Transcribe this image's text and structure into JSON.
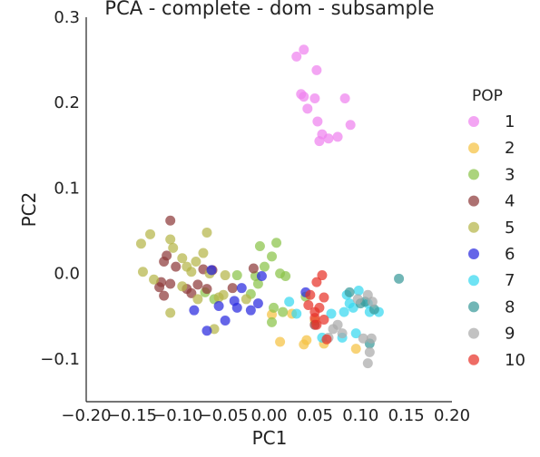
{
  "chart_data": {
    "type": "scatter",
    "title": "PCA - complete - dom - subsample",
    "xlabel": "PC1",
    "ylabel": "PC2",
    "xlim": [
      -0.2,
      0.2
    ],
    "ylim": [
      -0.15,
      0.3
    ],
    "xticks": [
      "−0.20",
      "−0.15",
      "−0.10",
      "−0.05",
      "0.00",
      "0.05",
      "0.10",
      "0.15",
      "0.20"
    ],
    "yticks": [
      "−0.1",
      "0.0",
      "0.1",
      "0.2",
      "0.3"
    ],
    "xtick_values": [
      -0.2,
      -0.15,
      -0.1,
      -0.05,
      0,
      0.05,
      0.1,
      0.15,
      0.2
    ],
    "ytick_values": [
      -0.1,
      0,
      0.1,
      0.2,
      0.3
    ],
    "grid": false,
    "legend_title": "POP",
    "legend_position": "right",
    "series": [
      {
        "name": "1",
        "color": "#ee82ee",
        "points": [
          [
            0.03,
            0.254
          ],
          [
            0.038,
            0.262
          ],
          [
            0.052,
            0.238
          ],
          [
            0.035,
            0.21
          ],
          [
            0.05,
            0.205
          ],
          [
            0.083,
            0.205
          ],
          [
            0.042,
            0.193
          ],
          [
            0.053,
            0.178
          ],
          [
            0.058,
            0.163
          ],
          [
            0.065,
            0.158
          ],
          [
            0.075,
            0.16
          ],
          [
            0.055,
            0.155
          ],
          [
            0.089,
            0.174
          ],
          [
            0.038,
            0.207
          ]
        ]
      },
      {
        "name": "2",
        "color": "#f5c242",
        "points": [
          [
            0.012,
            -0.08
          ],
          [
            0.025,
            -0.047
          ],
          [
            0.038,
            -0.083
          ],
          [
            0.041,
            -0.078
          ],
          [
            0.06,
            -0.082
          ],
          [
            0.05,
            -0.055
          ],
          [
            0.095,
            -0.088
          ],
          [
            0.003,
            -0.048
          ]
        ]
      },
      {
        "name": "3",
        "color": "#8bc34a",
        "points": [
          [
            -0.07,
            -0.022
          ],
          [
            -0.06,
            -0.03
          ],
          [
            -0.035,
            -0.002
          ],
          [
            -0.02,
            -0.024
          ],
          [
            -0.012,
            -0.012
          ],
          [
            -0.01,
            0.032
          ],
          [
            0.003,
            0.02
          ],
          [
            0.008,
            0.036
          ],
          [
            0.012,
            0.0
          ],
          [
            0.018,
            -0.003
          ],
          [
            0.015,
            -0.045
          ],
          [
            0.003,
            -0.057
          ],
          [
            0.005,
            -0.04
          ],
          [
            -0.005,
            0.008
          ],
          [
            0.04,
            -0.027
          ],
          [
            -0.015,
            -0.003
          ]
        ]
      },
      {
        "name": "4",
        "color": "#8e3a3a",
        "points": [
          [
            -0.108,
            0.062
          ],
          [
            -0.115,
            0.014
          ],
          [
            -0.112,
            0.021
          ],
          [
            -0.12,
            -0.016
          ],
          [
            -0.115,
            -0.026
          ],
          [
            -0.118,
            -0.01
          ],
          [
            -0.108,
            -0.012
          ],
          [
            -0.102,
            0.008
          ],
          [
            -0.09,
            -0.018
          ],
          [
            -0.085,
            -0.023
          ],
          [
            -0.078,
            -0.013
          ],
          [
            -0.072,
            0.005
          ],
          [
            -0.068,
            -0.018
          ],
          [
            -0.062,
            0.004
          ],
          [
            -0.04,
            -0.017
          ],
          [
            -0.017,
            0.006
          ],
          [
            0.05,
            -0.06
          ]
        ]
      },
      {
        "name": "5",
        "color": "#b5b54a",
        "points": [
          [
            -0.14,
            0.035
          ],
          [
            -0.13,
            0.046
          ],
          [
            -0.138,
            0.002
          ],
          [
            -0.126,
            -0.007
          ],
          [
            -0.108,
            0.04
          ],
          [
            -0.105,
            0.03
          ],
          [
            -0.095,
            0.018
          ],
          [
            -0.09,
            0.008
          ],
          [
            -0.085,
            0.002
          ],
          [
            -0.08,
            0.014
          ],
          [
            -0.072,
            0.024
          ],
          [
            -0.068,
            0.048
          ],
          [
            -0.065,
            0.0
          ],
          [
            -0.055,
            -0.028
          ],
          [
            -0.05,
            -0.025
          ],
          [
            -0.06,
            -0.065
          ],
          [
            -0.108,
            -0.046
          ],
          [
            -0.048,
            -0.002
          ],
          [
            -0.025,
            -0.03
          ],
          [
            -0.095,
            -0.015
          ],
          [
            -0.078,
            -0.03
          ]
        ]
      },
      {
        "name": "6",
        "color": "#2a2adf",
        "points": [
          [
            -0.082,
            -0.043
          ],
          [
            -0.068,
            -0.067
          ],
          [
            -0.063,
            0.004
          ],
          [
            -0.055,
            -0.038
          ],
          [
            -0.048,
            -0.055
          ],
          [
            -0.038,
            -0.032
          ],
          [
            -0.035,
            -0.04
          ],
          [
            -0.03,
            -0.017
          ],
          [
            -0.02,
            -0.043
          ],
          [
            -0.012,
            -0.035
          ],
          [
            -0.008,
            -0.003
          ],
          [
            0.04,
            -0.022
          ]
        ]
      },
      {
        "name": "7",
        "color": "#38d8f0",
        "points": [
          [
            0.022,
            -0.033
          ],
          [
            0.068,
            -0.047
          ],
          [
            0.082,
            -0.045
          ],
          [
            0.085,
            -0.025
          ],
          [
            0.088,
            -0.035
          ],
          [
            0.092,
            -0.04
          ],
          [
            0.098,
            -0.02
          ],
          [
            0.108,
            -0.035
          ],
          [
            0.11,
            -0.045
          ],
          [
            0.12,
            -0.045
          ],
          [
            0.08,
            -0.075
          ],
          [
            0.095,
            -0.07
          ],
          [
            0.058,
            -0.075
          ],
          [
            0.03,
            -0.047
          ]
        ]
      },
      {
        "name": "8",
        "color": "#3a9a9a",
        "points": [
          [
            0.142,
            -0.006
          ],
          [
            0.088,
            -0.022
          ],
          [
            0.1,
            -0.035
          ],
          [
            0.105,
            -0.033
          ],
          [
            0.115,
            -0.042
          ],
          [
            0.11,
            -0.082
          ]
        ]
      },
      {
        "name": "9",
        "color": "#aaaaaa",
        "points": [
          [
            0.07,
            -0.065
          ],
          [
            0.075,
            -0.06
          ],
          [
            0.08,
            -0.07
          ],
          [
            0.097,
            -0.03
          ],
          [
            0.108,
            -0.025
          ],
          [
            0.113,
            -0.033
          ],
          [
            0.103,
            -0.076
          ],
          [
            0.112,
            -0.076
          ],
          [
            0.11,
            -0.092
          ],
          [
            0.108,
            -0.105
          ],
          [
            0.065,
            -0.075
          ]
        ]
      },
      {
        "name": "10",
        "color": "#e8332a",
        "points": [
          [
            0.052,
            -0.01
          ],
          [
            0.058,
            -0.002
          ],
          [
            0.06,
            -0.028
          ],
          [
            0.045,
            -0.025
          ],
          [
            0.055,
            -0.04
          ],
          [
            0.05,
            -0.045
          ],
          [
            0.06,
            -0.054
          ],
          [
            0.052,
            -0.06
          ],
          [
            0.063,
            -0.077
          ],
          [
            0.043,
            -0.037
          ],
          [
            0.05,
            -0.052
          ]
        ]
      }
    ]
  }
}
